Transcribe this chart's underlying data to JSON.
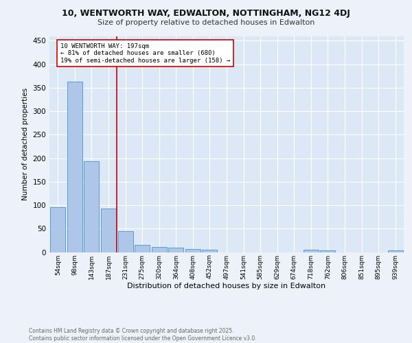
{
  "title": "10, WENTWORTH WAY, EDWALTON, NOTTINGHAM, NG12 4DJ",
  "subtitle": "Size of property relative to detached houses in Edwalton",
  "xlabel": "Distribution of detached houses by size in Edwalton",
  "ylabel": "Number of detached properties",
  "bar_labels": [
    "54sqm",
    "98sqm",
    "143sqm",
    "187sqm",
    "231sqm",
    "275sqm",
    "320sqm",
    "364sqm",
    "408sqm",
    "452sqm",
    "497sqm",
    "541sqm",
    "585sqm",
    "629sqm",
    "674sqm",
    "718sqm",
    "762sqm",
    "806sqm",
    "851sqm",
    "895sqm",
    "939sqm"
  ],
  "bar_values": [
    96,
    363,
    194,
    93,
    45,
    15,
    11,
    10,
    6,
    5,
    0,
    0,
    0,
    0,
    0,
    5,
    4,
    0,
    0,
    0,
    4
  ],
  "bar_color": "#aec6e8",
  "bar_edge_color": "#5b9bd5",
  "vline_x": 3.5,
  "annotation_text_line1": "10 WENTWORTH WAY: 197sqm",
  "annotation_text_line2": "← 81% of detached houses are smaller (680)",
  "annotation_text_line3": "19% of semi-detached houses are larger (158) →",
  "vline_color": "#cc0000",
  "annotation_box_color": "#ffffff",
  "annotation_box_edge": "#cc0000",
  "ylim": [
    0,
    460
  ],
  "yticks": [
    0,
    50,
    100,
    150,
    200,
    250,
    300,
    350,
    400,
    450
  ],
  "bg_color": "#dce8f5",
  "fig_bg_color": "#edf2fa",
  "footer_line1": "Contains HM Land Registry data © Crown copyright and database right 2025.",
  "footer_line2": "Contains public sector information licensed under the Open Government Licence v3.0."
}
